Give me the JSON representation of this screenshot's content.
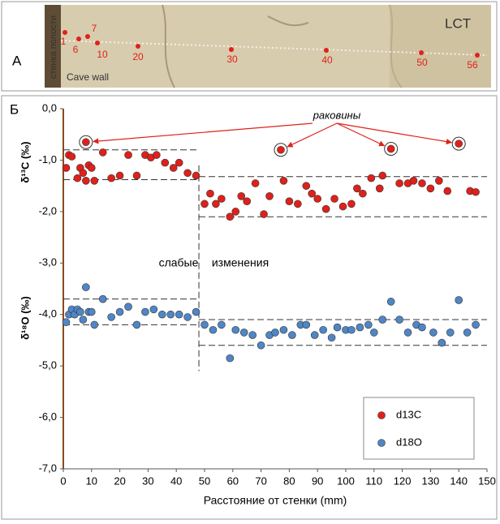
{
  "panel_a": {
    "label": "A",
    "side_label": "стенка полости",
    "wall_label": "Cave wall",
    "specimen": "LCT",
    "samples": [
      "1",
      "6",
      "7",
      "10",
      "20",
      "30",
      "40",
      "50",
      "56"
    ]
  },
  "chart_data": {
    "type": "scatter",
    "panel_label": "Б",
    "xlabel": "Расстояние от стенки (mm)",
    "ylabels": [
      "δ¹³C (‰)",
      "δ¹⁸O (‰)"
    ],
    "xlim": [
      0,
      150
    ],
    "xticks": [
      0,
      10,
      20,
      30,
      40,
      50,
      60,
      70,
      80,
      90,
      100,
      110,
      120,
      130,
      140,
      150
    ],
    "ylim": [
      -7,
      0
    ],
    "yticks": [
      {
        "value": 0,
        "label": "0,0"
      },
      {
        "value": -1,
        "label": "-1,0"
      },
      {
        "value": -2,
        "label": "-2,0"
      },
      {
        "value": -3,
        "label": "-3,0"
      },
      {
        "value": -4,
        "label": "-4,0"
      },
      {
        "value": -5,
        "label": "-5,0"
      },
      {
        "value": -6,
        "label": "-6,0"
      },
      {
        "value": -7,
        "label": "-7,0"
      }
    ],
    "series": [
      {
        "name": "d13C",
        "color": "#e0201a",
        "x": [
          1,
          2,
          3,
          5,
          6,
          7,
          8,
          8,
          9,
          10,
          11,
          14,
          17,
          20,
          23,
          26,
          29,
          31,
          33,
          36,
          39,
          41,
          44,
          47,
          50,
          52,
          54,
          56,
          59,
          61,
          63,
          65,
          68,
          71,
          73,
          77,
          78,
          80,
          83,
          86,
          88,
          90,
          93,
          96,
          99,
          102,
          104,
          106,
          109,
          112,
          113,
          116,
          119,
          122,
          124,
          127,
          130,
          133,
          136,
          140,
          144,
          146
        ],
        "values": [
          -1.15,
          -0.9,
          -0.93,
          -1.35,
          -1.15,
          -1.25,
          -1.4,
          -0.65,
          -1.1,
          -1.15,
          -1.4,
          -0.85,
          -1.35,
          -1.3,
          -0.9,
          -1.3,
          -0.9,
          -0.95,
          -0.9,
          -1.05,
          -1.15,
          -1.05,
          -1.25,
          -1.3,
          -1.85,
          -1.65,
          -1.85,
          -1.75,
          -2.1,
          -2.0,
          -1.7,
          -1.8,
          -1.45,
          -2.05,
          -1.7,
          -0.8,
          -1.4,
          -1.8,
          -1.85,
          -1.5,
          -1.65,
          -1.75,
          -1.95,
          -1.75,
          -1.9,
          -1.85,
          -1.55,
          -1.65,
          -1.35,
          -1.55,
          -1.3,
          -0.78,
          -1.45,
          -1.45,
          -1.4,
          -1.45,
          -1.55,
          -1.4,
          -1.6,
          -0.68,
          -1.6,
          -1.62
        ]
      },
      {
        "name": "d18O",
        "color": "#4f86c6",
        "x": [
          1,
          2,
          3,
          4,
          5,
          6,
          7,
          8,
          9,
          10,
          11,
          14,
          17,
          20,
          23,
          26,
          29,
          32,
          35,
          38,
          41,
          44,
          47,
          50,
          53,
          56,
          59,
          61,
          64,
          67,
          70,
          73,
          75,
          78,
          81,
          84,
          86,
          89,
          92,
          95,
          97,
          100,
          102,
          105,
          108,
          110,
          113,
          116,
          119,
          122,
          125,
          127,
          131,
          134,
          137,
          140,
          143,
          146
        ],
        "values": [
          -4.15,
          -4.0,
          -3.9,
          -4.0,
          -3.9,
          -3.95,
          -4.1,
          -3.47,
          -3.95,
          -3.95,
          -4.2,
          -3.7,
          -4.05,
          -3.95,
          -3.85,
          -4.2,
          -3.95,
          -3.9,
          -4.0,
          -4.0,
          -4.0,
          -4.05,
          -3.95,
          -4.2,
          -4.3,
          -4.2,
          -4.85,
          -4.3,
          -4.35,
          -4.4,
          -4.6,
          -4.4,
          -4.35,
          -4.3,
          -4.4,
          -4.2,
          -4.2,
          -4.4,
          -4.3,
          -4.45,
          -4.25,
          -4.3,
          -4.3,
          -4.25,
          -4.2,
          -4.35,
          -4.1,
          -3.75,
          -4.1,
          -4.35,
          -4.2,
          -4.25,
          -4.35,
          -4.55,
          -4.35,
          -3.72,
          -4.35,
          -4.2
        ]
      }
    ],
    "reference_lines": [
      {
        "x": [
          0,
          48
        ],
        "y": -0.8
      },
      {
        "x": [
          0,
          48
        ],
        "y": -1.38
      },
      {
        "x": [
          48,
          150
        ],
        "y": -1.32
      },
      {
        "x": [
          48,
          150
        ],
        "y": -2.1
      },
      {
        "x": [
          0,
          48
        ],
        "y": -3.7
      },
      {
        "x": [
          0,
          48
        ],
        "y": -4.2
      },
      {
        "x": [
          48,
          150
        ],
        "y": -4.1
      },
      {
        "x": [
          48,
          150
        ],
        "y": -4.6
      }
    ],
    "divider": {
      "x": 48,
      "y": [
        -1.1,
        -5.1
      ]
    },
    "annotations": [
      {
        "text": "раковины",
        "x": [
          8,
          77,
          116,
          140
        ],
        "y": [
          -0.65,
          -0.8,
          -0.78,
          -0.68
        ]
      },
      {
        "text": "слабые"
      },
      {
        "text": "изменения"
      }
    ]
  }
}
